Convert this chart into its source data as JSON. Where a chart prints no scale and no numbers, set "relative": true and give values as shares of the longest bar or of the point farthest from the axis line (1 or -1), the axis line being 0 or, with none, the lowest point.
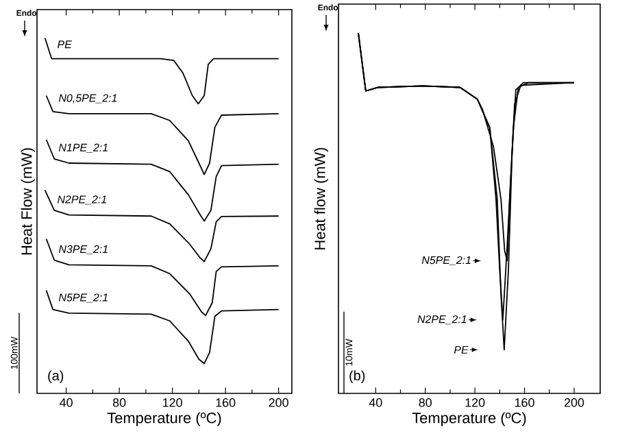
{
  "chart_data": [
    {
      "type": "line",
      "relative": true,
      "xlabel": "Temperature (ºC)",
      "ylabel": "Heat Flow (mW)",
      "xlim": [
        18,
        210
      ],
      "xticks": [
        40,
        80,
        120,
        160,
        200
      ],
      "annotations": [
        "Endo",
        "(a)",
        "100mW"
      ],
      "series": [
        {
          "name": "PE",
          "color": "#000000",
          "x": [
            24,
            29,
            111,
            121,
            128,
            135,
            139.5,
            144,
            147,
            151,
            200
          ],
          "values": [
            1.0,
            0.942,
            0.942,
            0.937,
            0.901,
            0.838,
            0.815,
            0.838,
            0.926,
            0.942,
            0.942
          ]
        },
        {
          "name": "N0,5PE_2:1",
          "color": "#000000",
          "x": [
            25,
            30,
            42,
            104,
            118,
            132,
            140,
            144,
            148,
            152,
            157,
            200
          ],
          "values": [
            0.838,
            0.793,
            0.787,
            0.787,
            0.768,
            0.711,
            0.648,
            0.616,
            0.648,
            0.749,
            0.783,
            0.787
          ]
        },
        {
          "name": "N1PE_2:1",
          "color": "#000000",
          "x": [
            25,
            31,
            42,
            104,
            118,
            132,
            141,
            144,
            149,
            153,
            157,
            200
          ],
          "values": [
            0.714,
            0.66,
            0.648,
            0.645,
            0.624,
            0.559,
            0.502,
            0.485,
            0.515,
            0.61,
            0.641,
            0.645
          ]
        },
        {
          "name": "N2PE_2:1",
          "color": "#000000",
          "x": [
            24,
            31,
            42,
            104,
            118,
            133,
            141,
            144,
            149,
            153,
            157,
            200
          ],
          "values": [
            0.572,
            0.515,
            0.502,
            0.499,
            0.477,
            0.42,
            0.381,
            0.371,
            0.407,
            0.483,
            0.498,
            0.499
          ]
        },
        {
          "name": "N3PE_2:1",
          "color": "#000000",
          "x": [
            25,
            31,
            42,
            104,
            118,
            133,
            142,
            145,
            150,
            153,
            157,
            200
          ],
          "values": [
            0.435,
            0.375,
            0.362,
            0.359,
            0.337,
            0.28,
            0.229,
            0.219,
            0.255,
            0.343,
            0.356,
            0.359
          ]
        },
        {
          "name": "N5PE_2:1",
          "color": "#000000",
          "x": [
            25,
            30,
            42,
            104,
            118,
            132,
            140,
            144,
            148,
            152,
            157,
            200
          ],
          "values": [
            0.29,
            0.236,
            0.226,
            0.223,
            0.204,
            0.147,
            0.096,
            0.084,
            0.115,
            0.217,
            0.232,
            0.236
          ]
        }
      ]
    },
    {
      "type": "line",
      "relative": true,
      "xlabel": "Temperature (ºC)",
      "ylabel": "Heat flow (mW)",
      "xlim": [
        10,
        221
      ],
      "xticks": [
        40,
        80,
        120,
        160,
        200
      ],
      "annotations": [
        "Endo",
        "(b)",
        "10mW"
      ],
      "legend": "bottom left",
      "series": [
        {
          "name": "N5PE_2:1",
          "color": "#000000",
          "x": [
            26,
            32,
            42,
            78,
            108,
            122,
            126,
            135,
            141,
            144,
            146,
            148,
            152,
            157,
            200
          ],
          "values": [
            1.0,
            0.839,
            0.849,
            0.853,
            0.849,
            0.816,
            0.789,
            0.684,
            0.539,
            0.395,
            0.368,
            0.539,
            0.803,
            0.855,
            0.862
          ]
        },
        {
          "name": "N2PE_2:1",
          "color": "#000000",
          "x": [
            26,
            32,
            42,
            78,
            108,
            122,
            132,
            137,
            140,
            142.5,
            146,
            151,
            155,
            163,
            200
          ],
          "values": [
            1.0,
            0.839,
            0.849,
            0.853,
            0.849,
            0.816,
            0.737,
            0.539,
            0.342,
            0.204,
            0.408,
            0.737,
            0.849,
            0.862,
            0.862
          ]
        },
        {
          "name": "PE",
          "color": "#000000",
          "x": [
            26,
            32,
            42,
            78,
            108,
            122,
            132,
            138,
            141,
            143.6,
            147,
            150,
            153,
            159,
            200
          ],
          "values": [
            1.0,
            0.839,
            0.849,
            0.853,
            0.849,
            0.816,
            0.737,
            0.539,
            0.276,
            0.121,
            0.342,
            0.671,
            0.842,
            0.862,
            0.862
          ]
        }
      ]
    }
  ]
}
